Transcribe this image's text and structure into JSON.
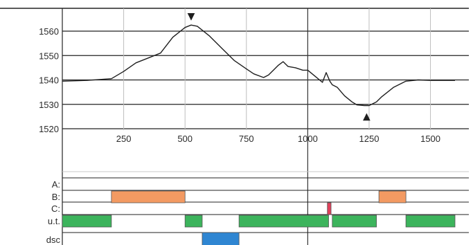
{
  "chart_data": {
    "type": "line",
    "x": [
      0,
      100,
      200,
      250,
      300,
      350,
      400,
      450,
      500,
      525,
      550,
      600,
      650,
      700,
      750,
      780,
      820,
      840,
      860,
      880,
      900,
      920,
      950,
      980,
      1000,
      1030,
      1060,
      1075,
      1090,
      1100,
      1120,
      1150,
      1180,
      1200,
      1230,
      1250,
      1280,
      1300,
      1350,
      1400,
      1450,
      1500,
      1600
    ],
    "y": [
      1539.5,
      1539.8,
      1540.5,
      1543.5,
      1547,
      1549,
      1551,
      1557.5,
      1561.5,
      1562.5,
      1562,
      1558,
      1553,
      1548,
      1544.5,
      1542.5,
      1541,
      1542,
      1544,
      1546,
      1547.5,
      1545.5,
      1545,
      1544,
      1544,
      1541.5,
      1539,
      1543,
      1539.5,
      1538,
      1537,
      1533.5,
      1531,
      1529.8,
      1529.5,
      1529.5,
      1531,
      1533,
      1537,
      1539.5,
      1540,
      1539.8,
      1539.8
    ],
    "xlim": [
      0,
      1600
    ],
    "ylim": [
      1520,
      1560
    ],
    "x_ticks": [
      250,
      500,
      750,
      1000,
      1250,
      1500
    ],
    "y_ticks": [
      1560,
      1550,
      1540,
      1530,
      1520
    ],
    "grid": true,
    "markers": [
      {
        "x": 525,
        "y": 1562.5,
        "symbol": "▼"
      },
      {
        "x": 1240,
        "y": 1529.5,
        "symbol": "▲"
      }
    ],
    "rows": [
      {
        "label": "A:",
        "segments": []
      },
      {
        "label": "B:",
        "segments": [
          {
            "start": 200,
            "end": 500,
            "color": "#f39a62"
          },
          {
            "start": 1290,
            "end": 1400,
            "color": "#f39a62"
          }
        ]
      },
      {
        "label": "C:",
        "segments": [
          {
            "start": 1080,
            "end": 1095,
            "color": "#e0405a"
          }
        ]
      },
      {
        "label": "u.t.",
        "segments": [
          {
            "start": 0,
            "end": 200,
            "color": "#3cb45c"
          },
          {
            "start": 500,
            "end": 570,
            "color": "#3cb45c"
          },
          {
            "start": 720,
            "end": 1085,
            "color": "#3cb45c"
          },
          {
            "start": 1100,
            "end": 1280,
            "color": "#3cb45c"
          },
          {
            "start": 1400,
            "end": 1600,
            "color": "#3cb45c"
          }
        ]
      },
      {
        "label": "dsc",
        "segments": [
          {
            "start": 570,
            "end": 720,
            "color": "#2f86d2"
          }
        ]
      }
    ],
    "title": "",
    "xlabel": "",
    "ylabel": ""
  }
}
